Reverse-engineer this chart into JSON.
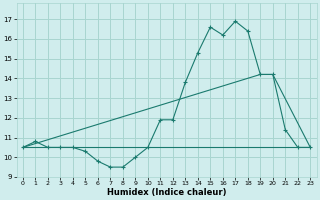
{
  "xlabel": "Humidex (Indice chaleur)",
  "xlim": [
    -0.5,
    23.5
  ],
  "ylim": [
    9,
    17.8
  ],
  "yticks": [
    9,
    10,
    11,
    12,
    13,
    14,
    15,
    16,
    17
  ],
  "xticks": [
    0,
    1,
    2,
    3,
    4,
    5,
    6,
    7,
    8,
    9,
    10,
    11,
    12,
    13,
    14,
    15,
    16,
    17,
    18,
    19,
    20,
    21,
    22,
    23
  ],
  "bg_color": "#d0eded",
  "grid_color": "#a8d5d0",
  "line_color": "#1a7a6e",
  "line1_x": [
    0,
    1,
    2,
    3,
    4,
    5,
    6,
    7,
    8,
    9,
    10,
    11,
    12,
    13,
    14,
    15,
    16,
    17,
    18,
    19,
    20,
    21,
    22,
    23
  ],
  "line1_y": [
    10.5,
    10.8,
    10.5,
    10.5,
    10.5,
    10.3,
    9.8,
    9.5,
    9.5,
    10.0,
    10.5,
    11.9,
    11.9,
    13.8,
    15.3,
    16.6,
    16.2,
    16.9,
    16.4,
    14.2,
    14.2,
    11.4,
    10.5,
    10.5
  ],
  "line2_x": [
    0,
    19,
    20,
    23
  ],
  "line2_y": [
    10.5,
    14.2,
    14.2,
    10.5
  ],
  "line3_x": [
    0,
    10,
    23
  ],
  "line3_y": [
    10.5,
    10.5,
    10.5
  ]
}
